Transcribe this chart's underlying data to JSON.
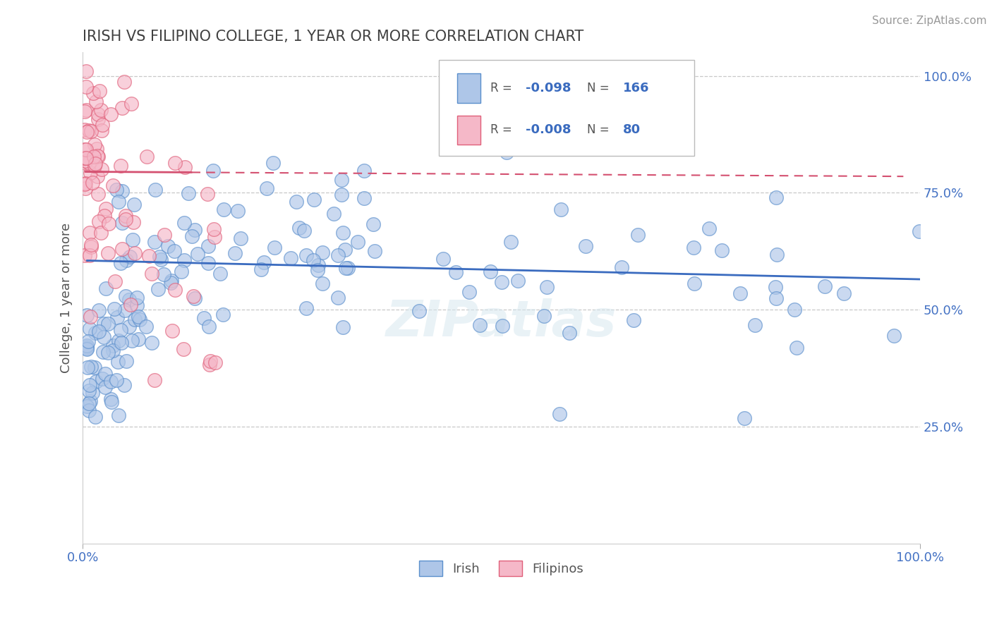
{
  "title": "IRISH VS FILIPINO COLLEGE, 1 YEAR OR MORE CORRELATION CHART",
  "source": "Source: ZipAtlas.com",
  "ylabel": "College, 1 year or more",
  "legend_irish": "Irish",
  "legend_filipinos": "Filipinos",
  "xlim": [
    0.0,
    1.0
  ],
  "ylim": [
    0.0,
    1.05
  ],
  "xtick_positions": [
    0.0,
    1.0
  ],
  "xtick_labels": [
    "0.0%",
    "100.0%"
  ],
  "ytick_positions": [
    0.25,
    0.5,
    0.75,
    1.0
  ],
  "ytick_labels": [
    "25.0%",
    "50.0%",
    "75.0%",
    "100.0%"
  ],
  "irish_fill_color": "#aec6e8",
  "irish_edge_color": "#5b8fcc",
  "filipino_fill_color": "#f5b8c8",
  "filipino_edge_color": "#e0607a",
  "irish_line_color": "#3a6bbf",
  "filipino_line_color": "#d45070",
  "background_color": "#ffffff",
  "grid_color": "#c8c8c8",
  "title_color": "#404040",
  "label_color": "#555555",
  "axis_tick_color": "#4472c4",
  "legend_box_color": "#e8e8e8",
  "irish_R_val": "-0.098",
  "irish_N_val": "166",
  "filipino_R_val": "-0.008",
  "filipino_N_val": "80",
  "watermark": "ZIPatlas",
  "irish_line_x0": 0.005,
  "irish_line_x1": 1.0,
  "irish_line_y0": 0.605,
  "irish_line_y1": 0.565,
  "filipino_line_x0": 0.003,
  "filipino_line_x1": 0.98,
  "filipino_line_y0": 0.795,
  "filipino_line_y1": 0.785
}
